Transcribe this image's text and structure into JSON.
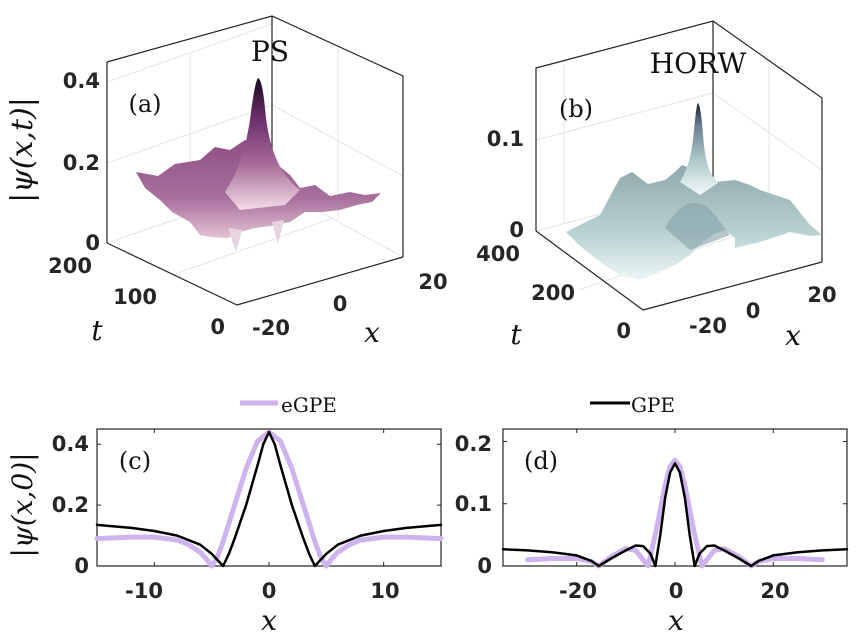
{
  "chart_data": [
    {
      "id": "a",
      "type": "surface3d",
      "panel_label": "(a)",
      "title": "PS",
      "zlabel": "|ψ(x,t)|",
      "xlabel": "x",
      "ylabel": "t",
      "x_ticks": [
        "-20",
        "0",
        "20"
      ],
      "t_ticks": [
        "0",
        "100",
        "200"
      ],
      "z_ticks": [
        "0",
        "0.2",
        "0.4"
      ],
      "xlim": [
        -30,
        30
      ],
      "tlim": [
        0,
        200
      ],
      "zlim": [
        0,
        0.45
      ],
      "peak": {
        "x": 0,
        "t": 0,
        "value": 0.42
      },
      "background_level": 0.15,
      "colormap": [
        "#f2dde6",
        "#a86a98",
        "#6a2d6a",
        "#1a0a20"
      ]
    },
    {
      "id": "b",
      "type": "surface3d",
      "panel_label": "(b)",
      "title": "HORW",
      "zlabel": "",
      "xlabel": "x",
      "ylabel": "t",
      "x_ticks": [
        "-20",
        "0",
        "20"
      ],
      "t_ticks": [
        "0",
        "200",
        "400"
      ],
      "z_ticks": [
        "0",
        "0.1"
      ],
      "xlim": [
        -30,
        30
      ],
      "tlim": [
        0,
        400
      ],
      "zlim": [
        0,
        0.15
      ],
      "peak": {
        "x": 0,
        "t": 0,
        "value": 0.12
      },
      "background_level": 0.04,
      "colormap": [
        "#f4fafa",
        "#a9c6c6",
        "#6e8a93",
        "#1b1a2a"
      ]
    },
    {
      "id": "c",
      "type": "line",
      "panel_label": "(c)",
      "xlabel": "x",
      "ylabel": "|ψ(x,0)|",
      "xlim": [
        -15,
        15
      ],
      "ylim": [
        0,
        0.45
      ],
      "x_ticks": [
        -10,
        0,
        10
      ],
      "x_tick_labels": [
        "-10",
        "0",
        "10"
      ],
      "y_ticks": [
        0,
        0.2,
        0.4
      ],
      "y_tick_labels": [
        "0",
        "0.2",
        "0.4"
      ],
      "series": [
        {
          "name": "eGPE",
          "color": "#cfb3ee",
          "x": [
            -15,
            -12,
            -10,
            -8,
            -7,
            -6,
            -5.5,
            -5,
            -4.5,
            -4,
            -3,
            -2,
            -1,
            0,
            1,
            2,
            3,
            4,
            4.5,
            5,
            5.5,
            6,
            7,
            8,
            10,
            12,
            15
          ],
          "y": [
            0.09,
            0.095,
            0.095,
            0.085,
            0.07,
            0.045,
            0.025,
            0.0,
            0.03,
            0.08,
            0.2,
            0.32,
            0.41,
            0.44,
            0.41,
            0.32,
            0.2,
            0.08,
            0.03,
            0.0,
            0.025,
            0.045,
            0.07,
            0.085,
            0.095,
            0.095,
            0.09
          ]
        },
        {
          "name": "GPE",
          "color": "#000000",
          "x": [
            -15,
            -12,
            -10,
            -8,
            -6,
            -5,
            -4.5,
            -4,
            -3.5,
            -3,
            -2,
            -1,
            -0.5,
            0,
            0.5,
            1,
            2,
            3,
            3.5,
            4,
            4.5,
            5,
            6,
            8,
            10,
            12,
            15
          ],
          "y": [
            0.135,
            0.125,
            0.115,
            0.1,
            0.07,
            0.04,
            0.02,
            0.0,
            0.04,
            0.09,
            0.2,
            0.33,
            0.4,
            0.44,
            0.4,
            0.33,
            0.2,
            0.09,
            0.04,
            0.0,
            0.02,
            0.04,
            0.07,
            0.1,
            0.115,
            0.125,
            0.135
          ]
        }
      ]
    },
    {
      "id": "d",
      "type": "line",
      "panel_label": "(d)",
      "xlabel": "x",
      "ylabel": "",
      "xlim": [
        -35,
        35
      ],
      "ylim": [
        0,
        0.22
      ],
      "x_ticks": [
        -20,
        0,
        20
      ],
      "x_tick_labels": [
        "-20",
        "0",
        "20"
      ],
      "y_ticks": [
        0,
        0.1,
        0.2
      ],
      "y_tick_labels": [
        "0",
        "0.1",
        "0.2"
      ],
      "series": [
        {
          "name": "eGPE",
          "color": "#cfb3ee",
          "x": [
            -30,
            -25,
            -20,
            -17,
            -15.5,
            -13,
            -10,
            -8,
            -6.5,
            -5.5,
            -4,
            -3,
            -2,
            -1,
            0,
            1,
            2,
            3,
            4,
            5.5,
            6.5,
            8,
            10,
            13,
            15.5,
            17,
            20,
            25,
            30
          ],
          "y": [
            0.01,
            0.012,
            0.012,
            0.007,
            0.0,
            0.015,
            0.028,
            0.025,
            0.01,
            0.0,
            0.05,
            0.09,
            0.13,
            0.16,
            0.17,
            0.16,
            0.13,
            0.09,
            0.05,
            0.0,
            0.01,
            0.025,
            0.028,
            0.015,
            0.0,
            0.007,
            0.012,
            0.012,
            0.01
          ]
        },
        {
          "name": "GPE",
          "color": "#000000",
          "x": [
            -35,
            -30,
            -25,
            -20,
            -17,
            -15.5,
            -13,
            -10,
            -8,
            -6.5,
            -5,
            -4,
            -3,
            -2,
            -1,
            0,
            1,
            2,
            3,
            4,
            5,
            6.5,
            8,
            10,
            13,
            15.5,
            17,
            20,
            25,
            30,
            35
          ],
          "y": [
            0.027,
            0.025,
            0.022,
            0.017,
            0.008,
            0.0,
            0.012,
            0.025,
            0.033,
            0.032,
            0.02,
            0.0,
            0.05,
            0.11,
            0.15,
            0.165,
            0.15,
            0.11,
            0.05,
            0.0,
            0.02,
            0.032,
            0.033,
            0.025,
            0.012,
            0.0,
            0.008,
            0.017,
            0.022,
            0.025,
            0.027
          ]
        }
      ]
    }
  ],
  "legend": {
    "items": [
      {
        "name": "eGPE",
        "color": "#cfb3ee"
      },
      {
        "name": "GPE",
        "color": "#000000"
      }
    ],
    "placement": "top-center"
  }
}
